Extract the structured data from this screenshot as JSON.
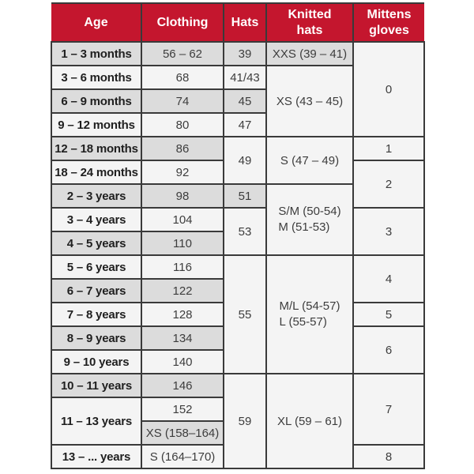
{
  "header": {
    "columns": [
      "Age",
      "Clothing",
      "Hats",
      "Knitted\nhats",
      "Mittens\ngloves"
    ]
  },
  "colors": {
    "header_bg": "#c4162e",
    "header_text": "#ffffff",
    "cell_gray": "#dcdcdc",
    "cell_light": "#f4f4f4",
    "border": "#3a3a3a"
  },
  "table": {
    "rows": [
      [
        {
          "col": "age",
          "text": "1 – 3 months",
          "rowspan": 1,
          "bg": "gray"
        },
        {
          "col": "clothing",
          "text": "56 – 62",
          "rowspan": 1,
          "bg": "gray"
        },
        {
          "col": "hats",
          "text": "39",
          "rowspan": 1,
          "bg": "gray"
        },
        {
          "col": "knitted",
          "text": "XXS (39 – 41)",
          "rowspan": 1,
          "bg": "gray"
        },
        {
          "col": "mittens",
          "text": "0",
          "rowspan": 4,
          "bg": "light"
        }
      ],
      [
        {
          "col": "age",
          "text": "3 – 6 months",
          "rowspan": 1,
          "bg": "light"
        },
        {
          "col": "clothing",
          "text": "68",
          "rowspan": 1,
          "bg": "light"
        },
        {
          "col": "hats",
          "text": "41/43",
          "rowspan": 1,
          "bg": "light"
        },
        {
          "col": "knitted",
          "text": "XS (43 – 45)",
          "rowspan": 3,
          "bg": "light"
        }
      ],
      [
        {
          "col": "age",
          "text": "6 – 9 months",
          "rowspan": 1,
          "bg": "gray"
        },
        {
          "col": "clothing",
          "text": "74",
          "rowspan": 1,
          "bg": "gray"
        },
        {
          "col": "hats",
          "text": "45",
          "rowspan": 1,
          "bg": "gray"
        }
      ],
      [
        {
          "col": "age",
          "text": "9 – 12 months",
          "rowspan": 1,
          "bg": "light"
        },
        {
          "col": "clothing",
          "text": "80",
          "rowspan": 1,
          "bg": "light"
        },
        {
          "col": "hats",
          "text": "47",
          "rowspan": 1,
          "bg": "light"
        }
      ],
      [
        {
          "col": "age",
          "text": "12 – 18 months",
          "rowspan": 1,
          "bg": "gray"
        },
        {
          "col": "clothing",
          "text": "86",
          "rowspan": 1,
          "bg": "gray"
        },
        {
          "col": "hats",
          "text": "49",
          "rowspan": 2,
          "bg": "light"
        },
        {
          "col": "knitted",
          "text": "S (47 – 49)",
          "rowspan": 2,
          "bg": "light"
        },
        {
          "col": "mittens",
          "text": "1",
          "rowspan": 1,
          "bg": "light"
        }
      ],
      [
        {
          "col": "age",
          "text": "18 – 24 months",
          "rowspan": 1,
          "bg": "light"
        },
        {
          "col": "clothing",
          "text": "92",
          "rowspan": 1,
          "bg": "light"
        },
        {
          "col": "mittens",
          "text": "2",
          "rowspan": 2,
          "bg": "light"
        }
      ],
      [
        {
          "col": "age",
          "text": "2 – 3 years",
          "rowspan": 1,
          "bg": "gray"
        },
        {
          "col": "clothing",
          "text": "98",
          "rowspan": 1,
          "bg": "gray"
        },
        {
          "col": "hats",
          "text": "51",
          "rowspan": 1,
          "bg": "gray"
        },
        {
          "col": "knitted",
          "text": "S/M (50-54)\nM (51-53)",
          "rowspan": 3,
          "bg": "light",
          "multiline": true
        }
      ],
      [
        {
          "col": "age",
          "text": "3 – 4 years",
          "rowspan": 1,
          "bg": "light"
        },
        {
          "col": "clothing",
          "text": "104",
          "rowspan": 1,
          "bg": "light"
        },
        {
          "col": "hats",
          "text": "53",
          "rowspan": 2,
          "bg": "light"
        },
        {
          "col": "mittens",
          "text": "3",
          "rowspan": 2,
          "bg": "light"
        }
      ],
      [
        {
          "col": "age",
          "text": "4 – 5 years",
          "rowspan": 1,
          "bg": "gray"
        },
        {
          "col": "clothing",
          "text": "110",
          "rowspan": 1,
          "bg": "gray"
        }
      ],
      [
        {
          "col": "age",
          "text": "5 – 6 years",
          "rowspan": 1,
          "bg": "light"
        },
        {
          "col": "clothing",
          "text": "116",
          "rowspan": 1,
          "bg": "light"
        },
        {
          "col": "hats",
          "text": "55",
          "rowspan": 5,
          "bg": "light"
        },
        {
          "col": "knitted",
          "text": "M/L (54-57)\nL (55-57)",
          "rowspan": 5,
          "bg": "light",
          "multiline": true
        },
        {
          "col": "mittens",
          "text": "4",
          "rowspan": 2,
          "bg": "light"
        }
      ],
      [
        {
          "col": "age",
          "text": "6 – 7 years",
          "rowspan": 1,
          "bg": "gray"
        },
        {
          "col": "clothing",
          "text": "122",
          "rowspan": 1,
          "bg": "gray"
        }
      ],
      [
        {
          "col": "age",
          "text": "7 – 8 years",
          "rowspan": 1,
          "bg": "light"
        },
        {
          "col": "clothing",
          "text": "128",
          "rowspan": 1,
          "bg": "light"
        },
        {
          "col": "mittens",
          "text": "5",
          "rowspan": 1,
          "bg": "light"
        }
      ],
      [
        {
          "col": "age",
          "text": "8 – 9 years",
          "rowspan": 1,
          "bg": "gray"
        },
        {
          "col": "clothing",
          "text": "134",
          "rowspan": 1,
          "bg": "gray"
        },
        {
          "col": "mittens",
          "text": "6",
          "rowspan": 2,
          "bg": "light"
        }
      ],
      [
        {
          "col": "age",
          "text": "9 – 10 years",
          "rowspan": 1,
          "bg": "light"
        },
        {
          "col": "clothing",
          "text": "140",
          "rowspan": 1,
          "bg": "light"
        }
      ],
      [
        {
          "col": "age",
          "text": "10 – 11 years",
          "rowspan": 1,
          "bg": "gray"
        },
        {
          "col": "clothing",
          "text": "146",
          "rowspan": 1,
          "bg": "gray"
        },
        {
          "col": "hats",
          "text": "59",
          "rowspan": 4,
          "bg": "light"
        },
        {
          "col": "knitted",
          "text": "XL (59 – 61)",
          "rowspan": 4,
          "bg": "light"
        },
        {
          "col": "mittens",
          "text": "7",
          "rowspan": 3,
          "bg": "light"
        }
      ],
      [
        {
          "col": "age",
          "text": "11 – 13 years",
          "rowspan": 2,
          "bg": "light"
        },
        {
          "col": "clothing",
          "text": "152",
          "rowspan": 1,
          "bg": "light"
        }
      ],
      [
        {
          "col": "clothing",
          "text": "XS (158–164)",
          "rowspan": 1,
          "bg": "gray"
        }
      ],
      [
        {
          "col": "age",
          "text": "13 – ... years",
          "rowspan": 1,
          "bg": "light"
        },
        {
          "col": "clothing",
          "text": "S (164–170)",
          "rowspan": 1,
          "bg": "light"
        },
        {
          "col": "mittens",
          "text": "8",
          "rowspan": 1,
          "bg": "light"
        }
      ]
    ]
  },
  "chart_data": {
    "type": "table",
    "title": "Children's size chart",
    "columns": [
      "Age",
      "Clothing",
      "Hats",
      "Knitted hats",
      "Mittens gloves"
    ],
    "rows": [
      [
        "1 – 3 months",
        "56 – 62",
        "39",
        "XXS (39 – 41)",
        "0"
      ],
      [
        "3 – 6 months",
        "68",
        "41/43",
        "XS (43 – 45)",
        "0"
      ],
      [
        "6 – 9 months",
        "74",
        "45",
        "XS (43 – 45)",
        "0"
      ],
      [
        "9 – 12 months",
        "80",
        "47",
        "XS (43 – 45)",
        "0"
      ],
      [
        "12 – 18 months",
        "86",
        "49",
        "S (47 – 49)",
        "1"
      ],
      [
        "18 – 24 months",
        "92",
        "49",
        "S (47 – 49)",
        "2"
      ],
      [
        "2 – 3 years",
        "98",
        "51",
        "S/M (50-54) M (51-53)",
        "2"
      ],
      [
        "3 – 4 years",
        "104",
        "53",
        "S/M (50-54) M (51-53)",
        "3"
      ],
      [
        "4 – 5 years",
        "110",
        "53",
        "S/M (50-54) M (51-53)",
        "3"
      ],
      [
        "5 – 6 years",
        "116",
        "55",
        "M/L (54-57) L (55-57)",
        "4"
      ],
      [
        "6 – 7 years",
        "122",
        "55",
        "M/L (54-57) L (55-57)",
        "4"
      ],
      [
        "7 – 8 years",
        "128",
        "55",
        "M/L (54-57) L (55-57)",
        "5"
      ],
      [
        "8 – 9 years",
        "134",
        "55",
        "M/L (54-57) L (55-57)",
        "6"
      ],
      [
        "9 – 10 years",
        "140",
        "55",
        "M/L (54-57) L (55-57)",
        "6"
      ],
      [
        "10 – 11 years",
        "146",
        "59",
        "XL (59 – 61)",
        "7"
      ],
      [
        "11 – 13 years",
        "152",
        "59",
        "XL (59 – 61)",
        "7"
      ],
      [
        "11 – 13 years",
        "XS (158–164)",
        "59",
        "XL (59 – 61)",
        "7"
      ],
      [
        "13 – ... years",
        "S (164–170)",
        "59",
        "XL (59 – 61)",
        "8"
      ]
    ]
  }
}
